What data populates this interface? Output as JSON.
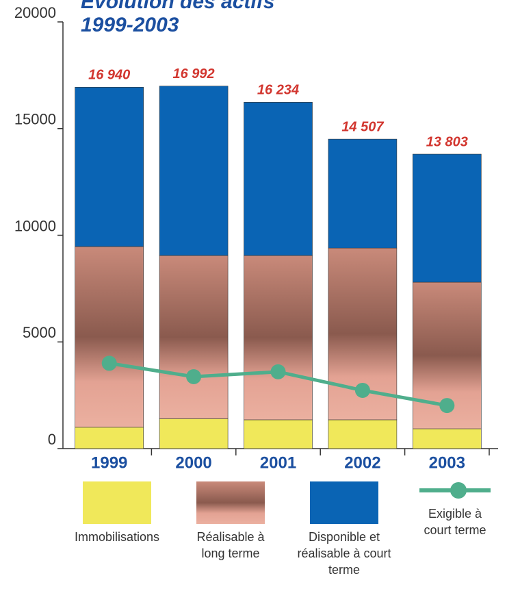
{
  "chart_data": {
    "type": "bar",
    "title": "Evolution des actifs",
    "subtitle": "1999-2003",
    "categories": [
      "1999",
      "2000",
      "2001",
      "2002",
      "2003"
    ],
    "series": [
      {
        "name": "Immobilisations",
        "color": "#f0e85a",
        "values": [
          1000,
          1400,
          1350,
          1350,
          930
        ]
      },
      {
        "name": "Réalisable à long terme",
        "color": "#e3a293",
        "values": [
          8470,
          7650,
          7700,
          8050,
          6870
        ]
      },
      {
        "name": "Disponible et réalisable à court terme",
        "color": "#0a64b4",
        "values": [
          7470,
          7942,
          7184,
          5107,
          6003
        ]
      },
      {
        "name": "Exigible à court terme",
        "color": "#4fae8c",
        "type": "line",
        "values": [
          4000,
          3370,
          3600,
          2730,
          2020
        ]
      }
    ],
    "totals": {
      "values": [
        16940,
        16992,
        16234,
        14507,
        13803
      ],
      "value_labels": [
        "16 940",
        "16 992",
        "16 234",
        "14 507",
        "13 803"
      ],
      "color": "#d2362f"
    },
    "ylim": [
      0,
      20000
    ],
    "yticks": [
      0,
      5000,
      10000,
      15000,
      20000
    ],
    "grid": false
  }
}
